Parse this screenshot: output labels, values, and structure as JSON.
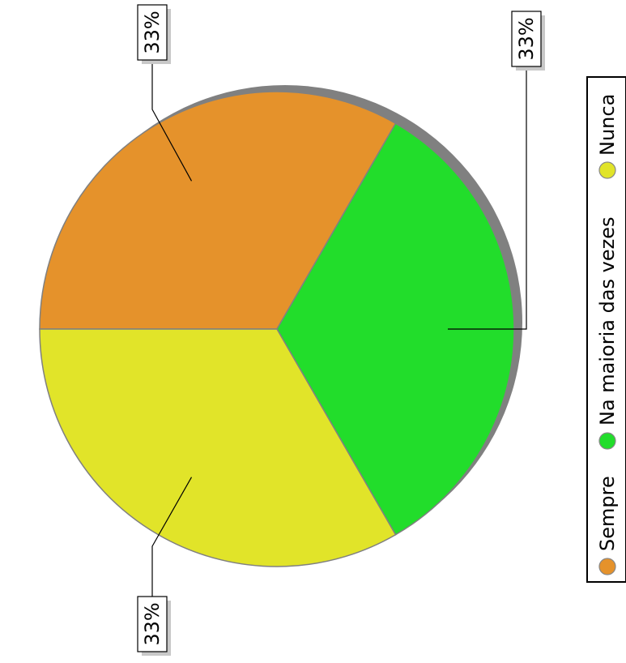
{
  "chart_data": {
    "type": "pie",
    "orientation": "rotated-90-clockwise",
    "slices": [
      {
        "label": "Sempre",
        "value": 33,
        "display": "33%",
        "color": "#e5922b"
      },
      {
        "label": "Na maioria das vezes",
        "value": 33,
        "display": "33%",
        "color": "#22dd2b"
      },
      {
        "label": "Nunca",
        "value": 33,
        "display": "33%",
        "color": "#e1e429"
      }
    ],
    "legend": {
      "position": "right",
      "entries": [
        "Sempre",
        "Na maioria das vezes",
        "Nunca"
      ]
    },
    "shadow_color": "#808080",
    "border_color": "#808080"
  }
}
